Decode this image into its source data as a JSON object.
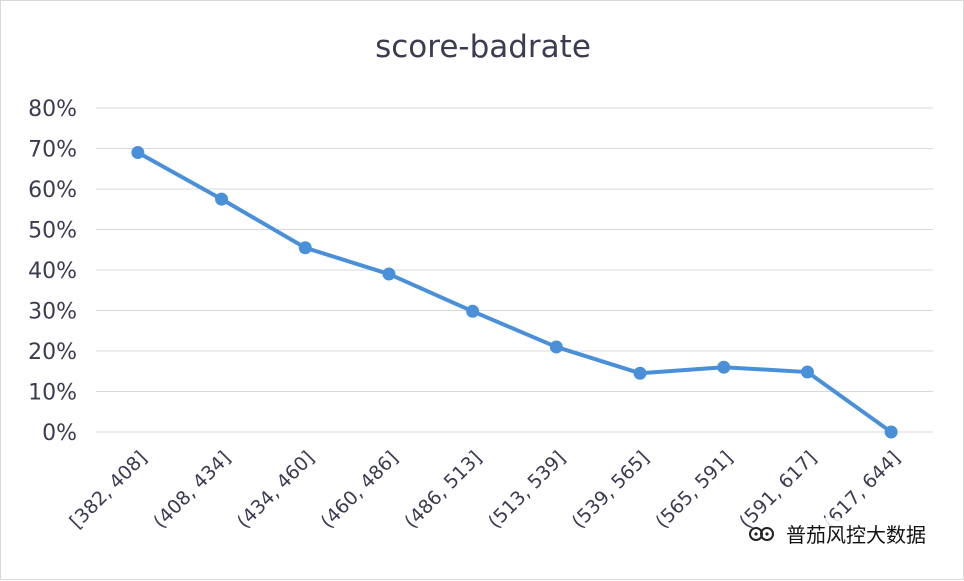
{
  "chart_data": {
    "type": "line",
    "title": "score-badrate",
    "xlabel": "",
    "ylabel": "",
    "categories": [
      "[382, 408]",
      "(408, 434]",
      "(434, 460]",
      "(460, 486]",
      "(486, 513]",
      "(513, 539]",
      "(539, 565]",
      "(565, 591]",
      "(591, 617]",
      "(617, 644]"
    ],
    "series": [
      {
        "values": [
          0.69,
          0.575,
          0.455,
          0.39,
          0.298,
          0.21,
          0.145,
          0.16,
          0.148,
          0.0
        ]
      }
    ],
    "ylim": [
      0,
      0.8
    ],
    "y_ticks": [
      "0%",
      "10%",
      "20%",
      "30%",
      "40%",
      "50%",
      "60%",
      "70%",
      "80%"
    ],
    "grid": "horizontal",
    "legend": "none",
    "line_color": "#4a90d9"
  },
  "watermark": {
    "text": "普茄风控大数据",
    "icon": "wechat-channel-icon"
  }
}
